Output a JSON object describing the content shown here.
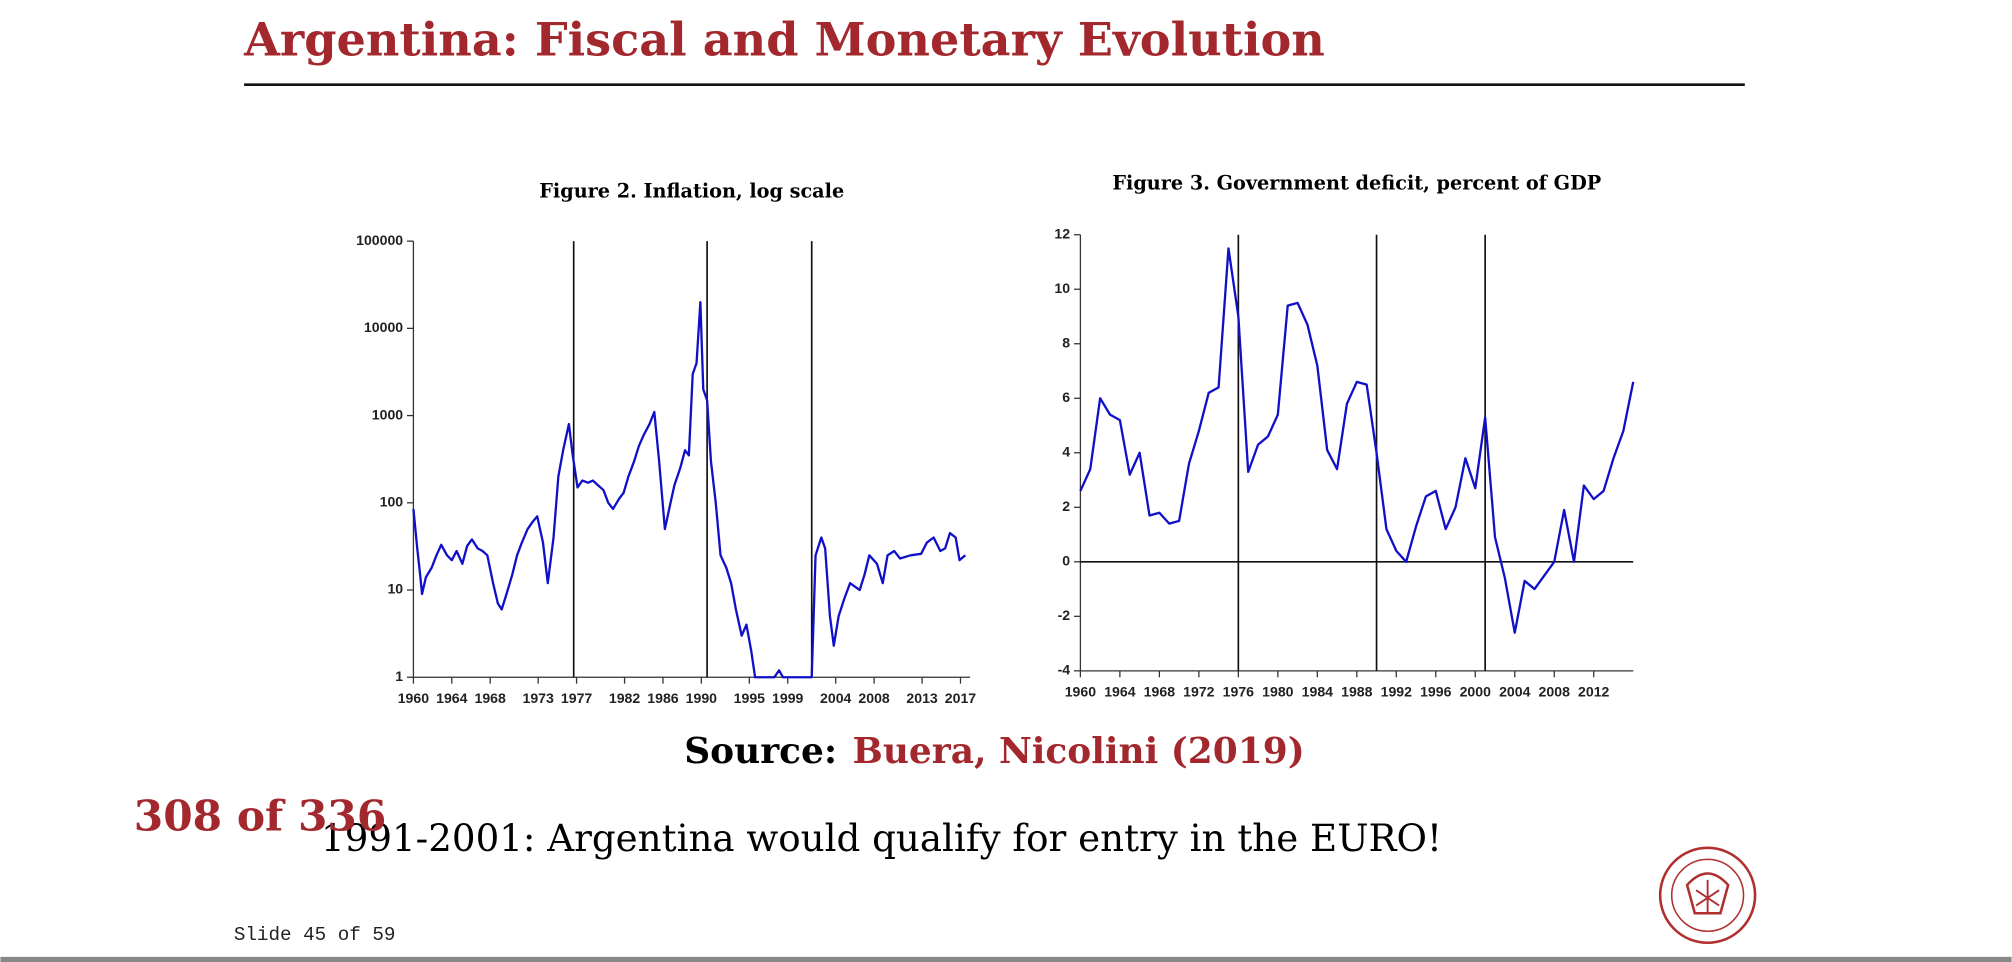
{
  "slide": {
    "title": "Argentina: Fiscal and Monetary Evolution",
    "source_label": "Source:",
    "source": "Buera, Nicolini (2019)",
    "bullet": "1991-2001: Argentina would qualify for entry in the EURO!",
    "counter": "308 of 336",
    "footer": "Slide 45 of 59"
  },
  "chart_data": [
    {
      "type": "line",
      "title": "Figure 2. Inflation, log scale",
      "log_scale": true,
      "color": "#1010c8",
      "x": [
        1960.0,
        1960.4,
        1960.7,
        1960.9,
        1961.3,
        1961.9,
        1962.4,
        1962.9,
        1963.5,
        1964.0,
        1964.5,
        1965.1,
        1965.6,
        1966.1,
        1966.7,
        1967.2,
        1967.7,
        1968.3,
        1968.8,
        1969.2,
        1969.7,
        1970.3,
        1970.8,
        1971.3,
        1971.9,
        1972.4,
        1972.9,
        1973.5,
        1974.0,
        1974.6,
        1975.1,
        1975.6,
        1976.2,
        1976.6,
        1977.1,
        1977.6,
        1978.2,
        1978.7,
        1979.2,
        1979.8,
        1980.3,
        1980.8,
        1981.4,
        1981.9,
        1982.4,
        1983.0,
        1983.5,
        1984.0,
        1984.6,
        1985.1,
        1985.6,
        1986.2,
        1986.7,
        1987.2,
        1987.8,
        1988.3,
        1988.7,
        1989.1,
        1989.5,
        1989.9,
        1990.2,
        1990.6,
        1991.0,
        1991.5,
        1992.0,
        1992.6,
        1993.1,
        1993.6,
        1994.2,
        1994.7,
        1995.2,
        1995.6,
        1997.6,
        1998.1,
        1998.5,
        2001.5,
        2001.9,
        2002.5,
        2002.9,
        2003.4,
        2003.8,
        2004.3,
        2004.9,
        2005.5,
        2006.5,
        2007.0,
        2007.5,
        2008.3,
        2008.9,
        2009.4,
        2010.1,
        2010.7,
        2011.8,
        2012.9,
        2013.5,
        2014.2,
        2014.9,
        2015.4,
        2015.9,
        2016.5,
        2016.9,
        2017.5
      ],
      "values": [
        85,
        30,
        15,
        9,
        14,
        18,
        25,
        33,
        25,
        22,
        28,
        20,
        32,
        38,
        30,
        28,
        25,
        12,
        7,
        6,
        9,
        15,
        25,
        35,
        50,
        60,
        70,
        35,
        12,
        40,
        200,
        400,
        800,
        350,
        150,
        180,
        170,
        180,
        160,
        140,
        100,
        85,
        110,
        130,
        200,
        300,
        450,
        600,
        800,
        1100,
        300,
        50,
        90,
        160,
        250,
        400,
        350,
        3000,
        4000,
        20000,
        2000,
        1500,
        300,
        100,
        25,
        18,
        12,
        6,
        3,
        4,
        2,
        1,
        1,
        1.2,
        1,
        1,
        25,
        40,
        30,
        5,
        2.3,
        5,
        8,
        12,
        10,
        15,
        25,
        20,
        12,
        25,
        28,
        23,
        25,
        26,
        35,
        40,
        28,
        30,
        45,
        40,
        22,
        25
      ],
      "xlim": [
        1960,
        2018
      ],
      "xticks": [
        1960,
        1964,
        1968,
        1973,
        1977,
        1982,
        1986,
        1990,
        1995,
        1999,
        2004,
        2008,
        2013,
        2017
      ],
      "ylim": [
        1,
        100000
      ],
      "yticks": [
        1,
        10,
        100,
        1000,
        10000,
        100000
      ],
      "vlines": [
        1976.7,
        1990.6,
        2001.5
      ]
    },
    {
      "type": "line",
      "title": "Figure 3. Government deficit, percent of GDP",
      "log_scale": false,
      "color": "#1010c8",
      "x": [
        1960,
        1961,
        1962,
        1963,
        1964,
        1965,
        1966,
        1967,
        1968,
        1969,
        1970,
        1971,
        1972,
        1973,
        1974,
        1975,
        1976,
        1977,
        1978,
        1979,
        1980,
        1981,
        1982,
        1983,
        1984,
        1985,
        1986,
        1987,
        1988,
        1989,
        1990,
        1991,
        1992,
        1993,
        1994,
        1995,
        1996,
        1997,
        1998,
        1999,
        2000,
        2001,
        2002,
        2003,
        2004,
        2005,
        2006,
        2007,
        2008,
        2009,
        2010,
        2011,
        2012,
        2013,
        2014,
        2015,
        2016
      ],
      "values": [
        2.6,
        3.4,
        6.0,
        5.4,
        5.2,
        3.2,
        4.0,
        1.7,
        1.8,
        1.4,
        1.5,
        3.6,
        4.8,
        6.2,
        6.4,
        11.5,
        9.0,
        3.3,
        4.3,
        4.6,
        5.4,
        9.4,
        9.5,
        8.7,
        7.2,
        4.1,
        3.4,
        5.8,
        6.6,
        6.5,
        4.0,
        1.2,
        0.4,
        0.0,
        1.3,
        2.4,
        2.6,
        1.2,
        2.0,
        3.8,
        2.7,
        5.3,
        0.9,
        -0.6,
        -2.6,
        -0.7,
        -1.0,
        -0.5,
        0.0,
        1.9,
        0.0,
        2.8,
        2.3,
        2.6,
        3.8,
        4.8,
        6.6
      ],
      "xlim": [
        1960,
        2016
      ],
      "xticks": [
        1960,
        1964,
        1968,
        1972,
        1976,
        1980,
        1984,
        1988,
        1992,
        1996,
        2000,
        2004,
        2008,
        2012
      ],
      "ylim": [
        -4,
        12
      ],
      "yticks": [
        -4,
        -2,
        0,
        2,
        4,
        6,
        8,
        10,
        12
      ],
      "vlines": [
        1976,
        1990,
        2001
      ]
    }
  ]
}
